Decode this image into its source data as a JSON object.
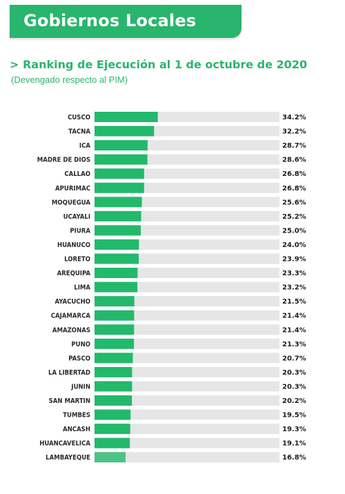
{
  "header": {
    "title": "Gobiernos Locales",
    "subtitle": "> Ranking de Ejecución al 1 de octubre de 2020",
    "note": "(Devengado respecto al PIM)"
  },
  "colors": {
    "accent": "#29b56d",
    "bar": "#22b96b",
    "bar_last": "#4cc384",
    "track": "#e6e6e6"
  },
  "chart_data": {
    "type": "bar",
    "orientation": "horizontal",
    "xlim": [
      0,
      100
    ],
    "categories": [
      "CUSCO",
      "TACNA",
      "ICA",
      "MADRE DE DIOS",
      "CALLAO",
      "APURIMAC",
      "MOQUEGUA",
      "UCAYALI",
      "PIURA",
      "HUANUCO",
      "LORETO",
      "AREQUIPA",
      "LIMA",
      "AYACUCHO",
      "CAJAMARCA",
      "AMAZONAS",
      "PUNO",
      "PASCO",
      "LA LIBERTAD",
      "JUNIN",
      "SAN MARTIN",
      "TUMBES",
      "ANCASH",
      "HUANCAVELICA",
      "LAMBAYEQUE"
    ],
    "values": [
      34.2,
      32.2,
      28.7,
      28.6,
      26.8,
      26.8,
      25.6,
      25.2,
      25.0,
      24.0,
      23.9,
      23.3,
      23.2,
      21.5,
      21.4,
      21.4,
      21.3,
      20.7,
      20.3,
      20.3,
      20.2,
      19.5,
      19.3,
      19.1,
      16.8
    ],
    "value_labels": [
      "34.2%",
      "32.2%",
      "28.7%",
      "28.6%",
      "26.8%",
      "26.8%",
      "25.6%",
      "25.2%",
      "25.0%",
      "24.0%",
      "23.9%",
      "23.3%",
      "23.2%",
      "21.5%",
      "21.4%",
      "21.4%",
      "21.3%",
      "20.7%",
      "20.3%",
      "20.3%",
      "20.2%",
      "19.5%",
      "19.3%",
      "19.1%",
      "16.8%"
    ]
  }
}
